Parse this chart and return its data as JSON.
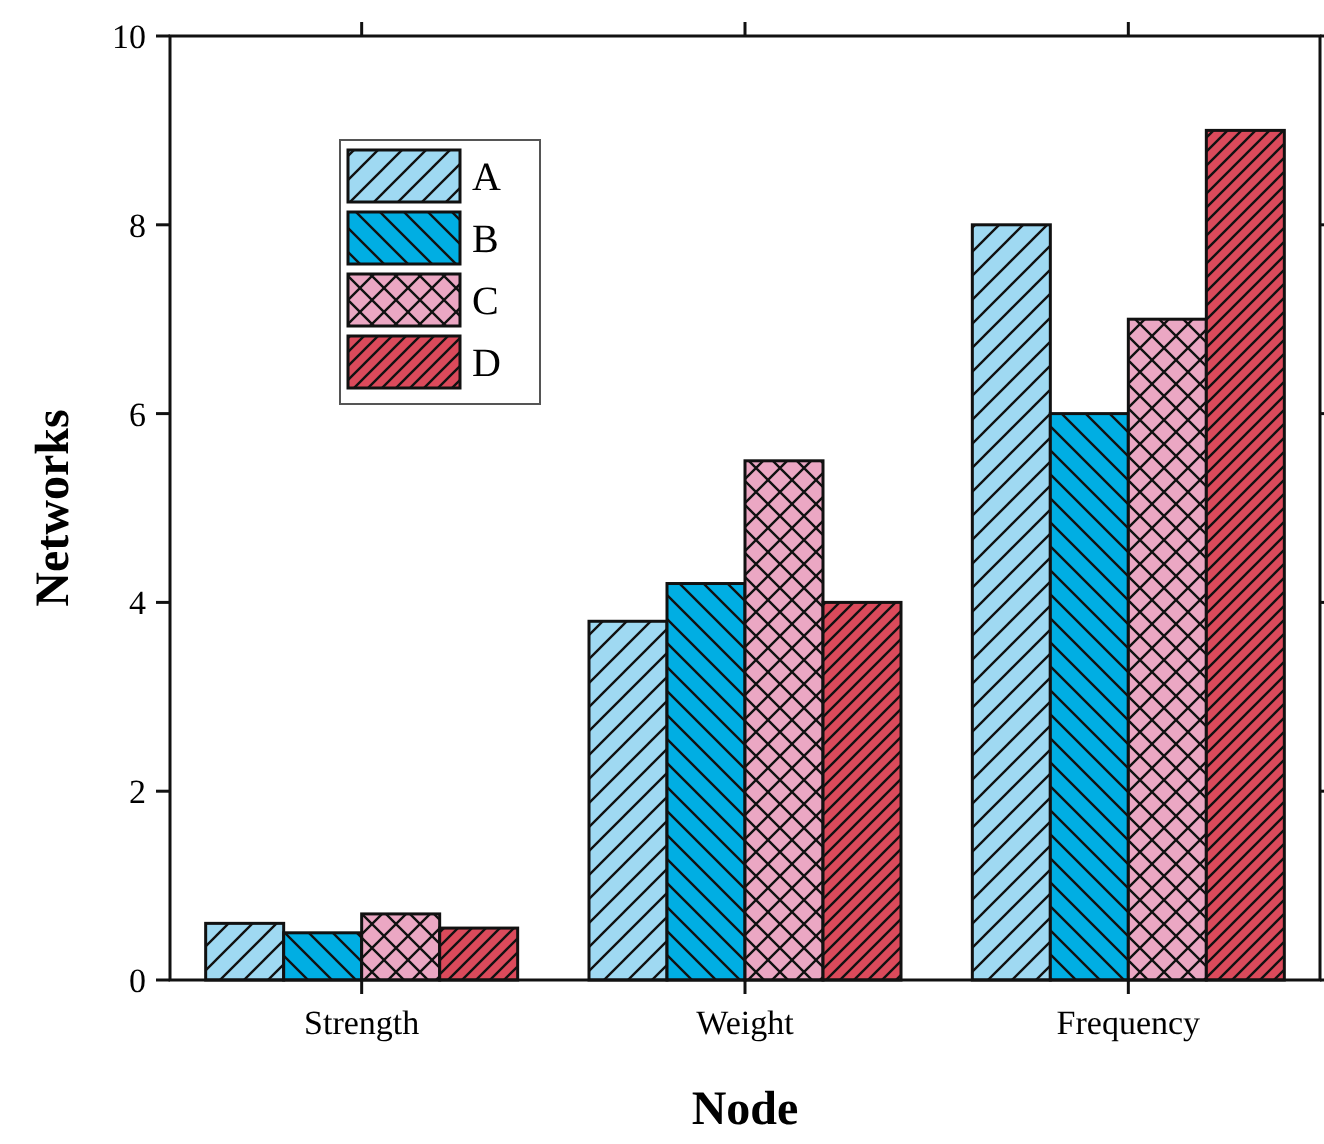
{
  "chart_data": {
    "type": "bar",
    "xlabel": "Node",
    "ylabel": "Networks",
    "categories": [
      "Strength",
      "Weight",
      "Frequency"
    ],
    "series": [
      {
        "name": "A",
        "color": "#9fd9f2",
        "values": [
          0.6,
          3.8,
          8
        ]
      },
      {
        "name": "B",
        "color": "#00aee3",
        "values": [
          0.5,
          4.2,
          6
        ]
      },
      {
        "name": "C",
        "color": "#eba7c3",
        "values": [
          0.7,
          5.5,
          7
        ]
      },
      {
        "name": "D",
        "color": "#db4a5b",
        "values": [
          0.55,
          4,
          9
        ]
      }
    ],
    "ylim": [
      0,
      10
    ],
    "yticks": [
      0,
      2,
      4,
      6,
      8,
      10
    ],
    "legend": "top left",
    "grid": false
  }
}
